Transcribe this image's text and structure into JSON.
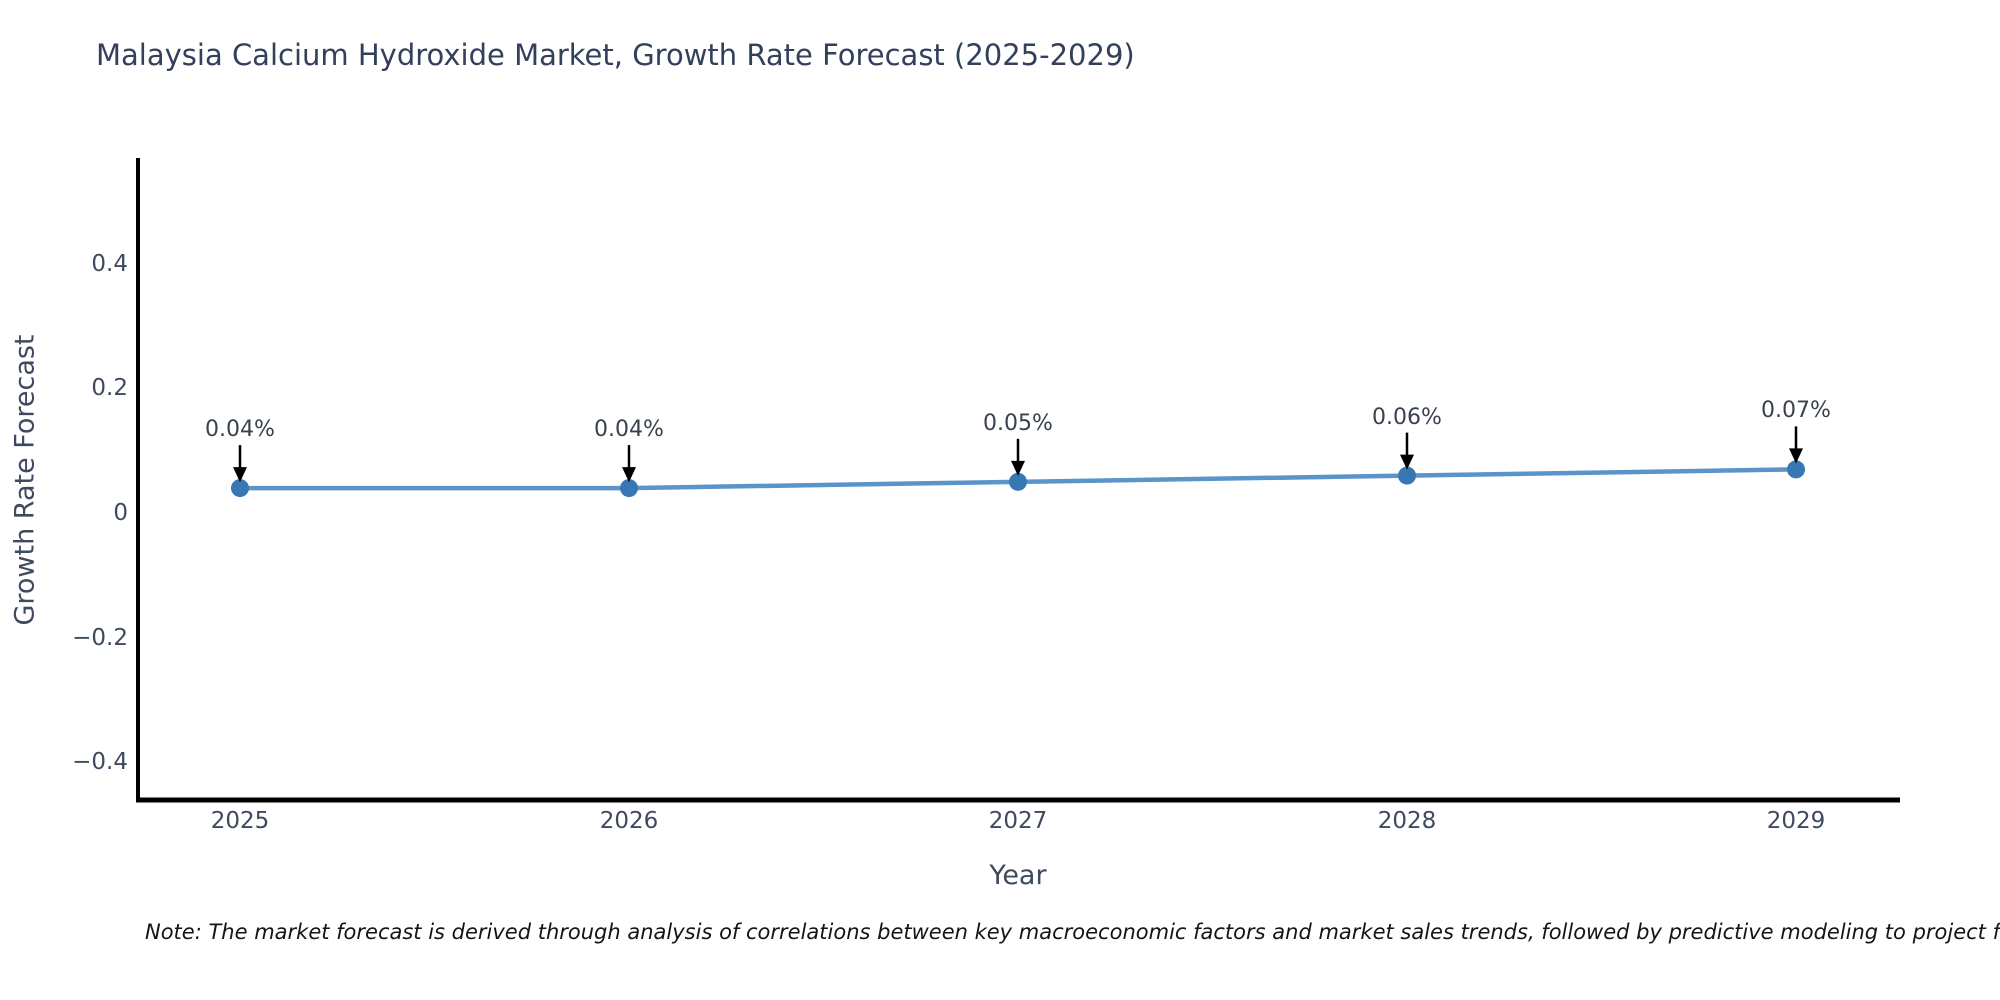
{
  "title": "Malaysia Calcium Hydroxide Market, Growth Rate Forecast (2025-2029)",
  "note": "Note: The market forecast is derived through analysis of correlations between key macroeconomic factors and market sales trends, followed by predictive modeling to project future sales.",
  "chart_data": {
    "type": "line",
    "title": "Malaysia Calcium Hydroxide Market, Growth Rate Forecast (2025-2029)",
    "xlabel": "Year",
    "ylabel": "Growth Rate Forecast",
    "categories": [
      "2025",
      "2026",
      "2027",
      "2028",
      "2029"
    ],
    "series": [
      {
        "name": "Growth Rate Forecast",
        "values": [
          0.04,
          0.04,
          0.05,
          0.06,
          0.07
        ]
      }
    ],
    "point_labels": [
      "0.04%",
      "0.04%",
      "0.05%",
      "0.06%",
      "0.07%"
    ],
    "yticks": [
      {
        "value": 0.4,
        "label": "0.4"
      },
      {
        "value": 0.2,
        "label": "0.2"
      },
      {
        "value": 0,
        "label": "0"
      },
      {
        "value": -0.2,
        "label": "−0.2"
      },
      {
        "value": -0.4,
        "label": "−0.4"
      }
    ],
    "ylim": [
      -0.46,
      0.57
    ],
    "grid": false,
    "legend": "none",
    "annotation_style": "black-down-arrow",
    "colors": {
      "line": "#5b94c8",
      "marker": "#3778b4",
      "arrow": "#000000",
      "spine": "#000000",
      "title": "#33405c",
      "tick": "#3e4a5f",
      "note": "#141414",
      "background": "#ffffff"
    }
  }
}
